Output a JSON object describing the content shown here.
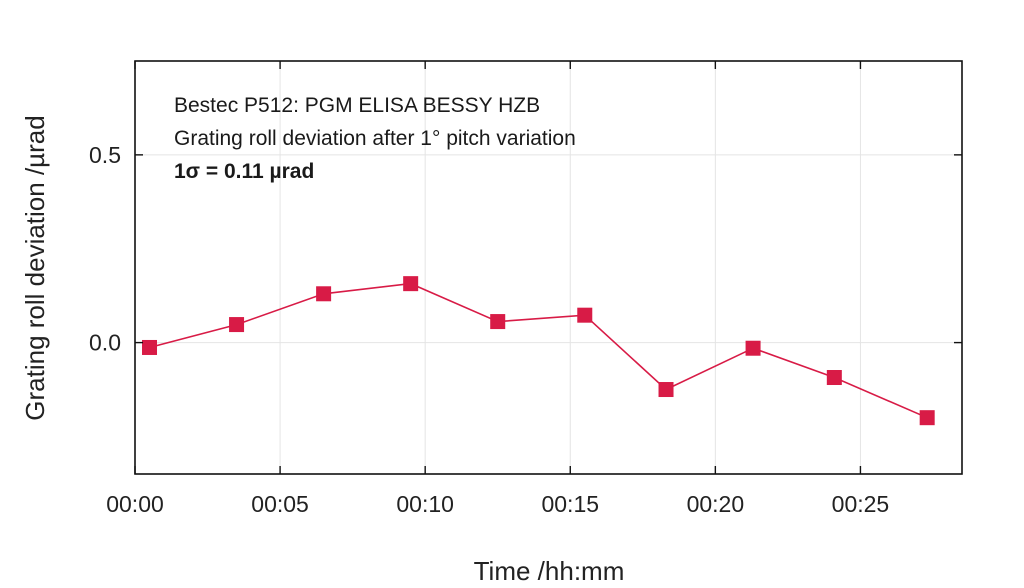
{
  "chart_data": {
    "type": "line",
    "title": "",
    "xlabel": "Time /hh:mm",
    "ylabel": "Grating roll deviation /µrad",
    "x_unit": "minutes",
    "xlim": [
      0,
      28.5
    ],
    "ylim": [
      -0.35,
      0.75
    ],
    "x_ticks": [
      0,
      5,
      10,
      15,
      20,
      25
    ],
    "x_tick_labels": [
      "00:00",
      "00:05",
      "00:10",
      "00:15",
      "00:20",
      "00:25"
    ],
    "y_ticks": [
      0.0,
      0.5
    ],
    "y_tick_labels": [
      "0.0",
      "0.5"
    ],
    "grid": true,
    "annotations": [
      "Bestec P512: PGM ELISA BESSY HZB",
      "Grating roll deviation after 1° pitch variation",
      "1σ = 0.11 µrad"
    ],
    "series": [
      {
        "x": [
          0.5,
          3.5,
          6.5,
          9.5,
          12.5,
          15.5,
          18.3,
          21.3,
          24.1,
          27.3
        ],
        "y": [
          -0.013,
          0.048,
          0.13,
          0.157,
          0.056,
          0.073,
          -0.125,
          -0.015,
          -0.093,
          -0.2
        ],
        "color": "#d81b46",
        "marker": "square"
      }
    ]
  }
}
